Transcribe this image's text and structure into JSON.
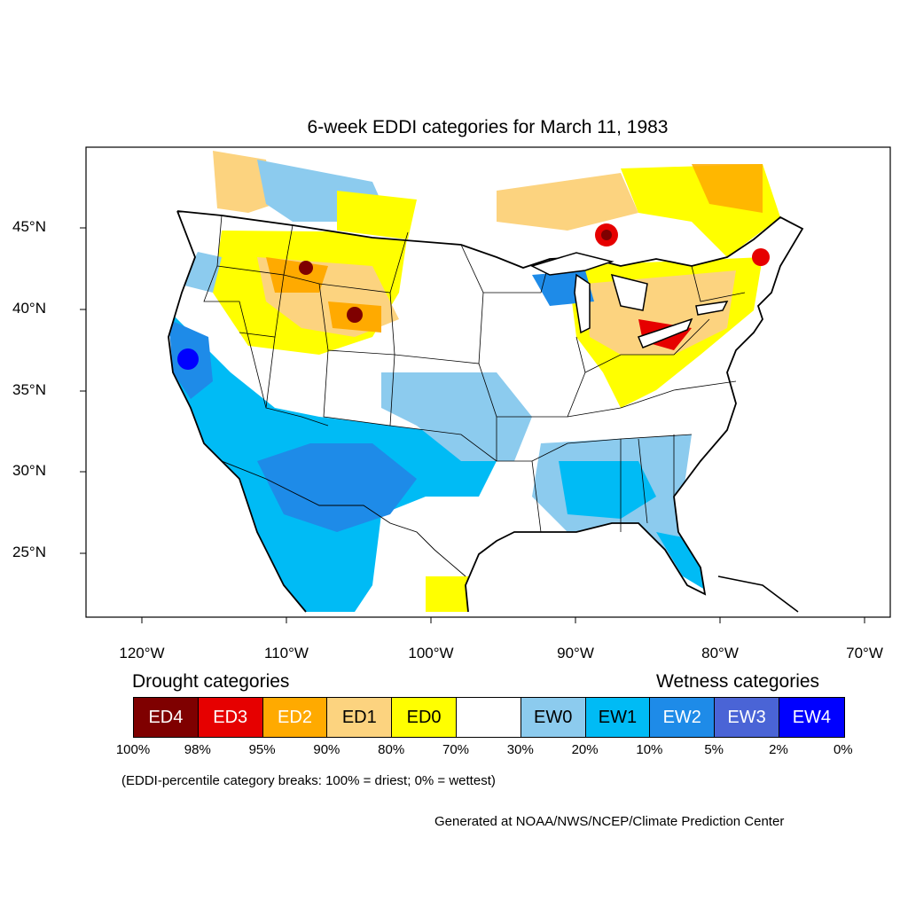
{
  "title": "6-week EDDI categories for March 11, 1983",
  "map": {
    "lat_ticks": [
      "45°N",
      "40°N",
      "35°N",
      "30°N",
      "25°N"
    ],
    "lon_ticks": [
      "120°W",
      "110°W",
      "100°W",
      "90°W",
      "80°W",
      "70°W"
    ],
    "extent": {
      "lon": [
        -124,
        -68.5
      ],
      "lat": [
        21,
        50
      ]
    }
  },
  "legend": {
    "drought_label": "Drought categories",
    "wetness_label": "Wetness categories",
    "categories": [
      {
        "label": "ED4",
        "color": "#7f0000",
        "text_color": "#ffffff"
      },
      {
        "label": "ED3",
        "color": "#e60000",
        "text_color": "#ffffff"
      },
      {
        "label": "ED2",
        "color": "#ffaa00",
        "text_color": "#ffffff"
      },
      {
        "label": "ED1",
        "color": "#fcd37f",
        "text_color": "#000000"
      },
      {
        "label": "ED0",
        "color": "#ffff00",
        "text_color": "#000000"
      },
      {
        "label": "",
        "color": "#ffffff",
        "text_color": "#000000"
      },
      {
        "label": "EW0",
        "color": "#8ccbee",
        "text_color": "#000000"
      },
      {
        "label": "EW1",
        "color": "#00bbf5",
        "text_color": "#000000"
      },
      {
        "label": "EW2",
        "color": "#1e8be8",
        "text_color": "#ffffff"
      },
      {
        "label": "EW3",
        "color": "#4a64d6",
        "text_color": "#ffffff"
      },
      {
        "label": "EW4",
        "color": "#0000ff",
        "text_color": "#ffffff"
      }
    ],
    "breaks": [
      "100%",
      "98%",
      "95%",
      "90%",
      "80%",
      "70%",
      "30%",
      "20%",
      "10%",
      "5%",
      "2%",
      "0%"
    ]
  },
  "note": "(EDDI-percentile category breaks: 100% = driest; 0% = wettest)",
  "credit": "Generated at NOAA/NWS/NCEP/Climate Prediction Center"
}
